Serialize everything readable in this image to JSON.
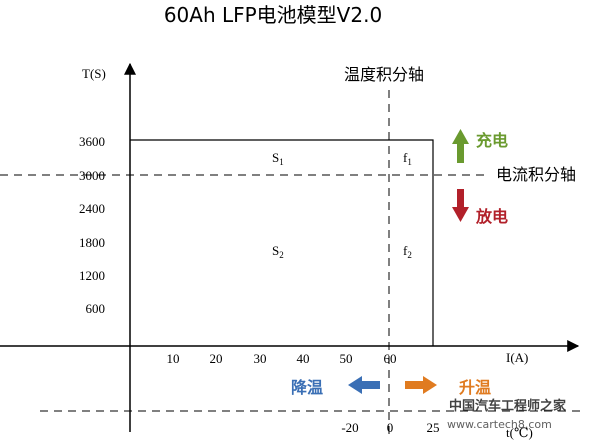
{
  "title": "60Ah LFP电池模型V2.0",
  "axes": {
    "y_label": "T(S)",
    "x_label": "I(A)",
    "temp_label": "t(℃)",
    "y_ticks": [
      "3600",
      "3000",
      "2400",
      "1800",
      "1200",
      "600"
    ],
    "x_ticks": [
      "10",
      "20",
      "30",
      "40",
      "50",
      "60"
    ],
    "temp_ticks": [
      "-20",
      "0",
      "25"
    ]
  },
  "annotations": {
    "temp_integral_axis": "温度积分轴",
    "current_integral_axis": "电流积分轴",
    "charge": "充电",
    "discharge": "放电",
    "cool_down": "降温",
    "heat_up": "升温"
  },
  "regions": {
    "s1": "S",
    "s1_sub": "1",
    "s2": "S",
    "s2_sub": "2",
    "f1": "f",
    "f1_sub": "1",
    "f2": "f",
    "f2_sub": "2"
  },
  "watermark": {
    "logo_text": "中国汽车工程师之家",
    "url": "www.cartech8.com"
  },
  "colors": {
    "charge": "#6a9a2f",
    "discharge": "#b2202a",
    "cool": "#3a6fb5",
    "heat": "#e07b20",
    "lines": "#000000"
  }
}
